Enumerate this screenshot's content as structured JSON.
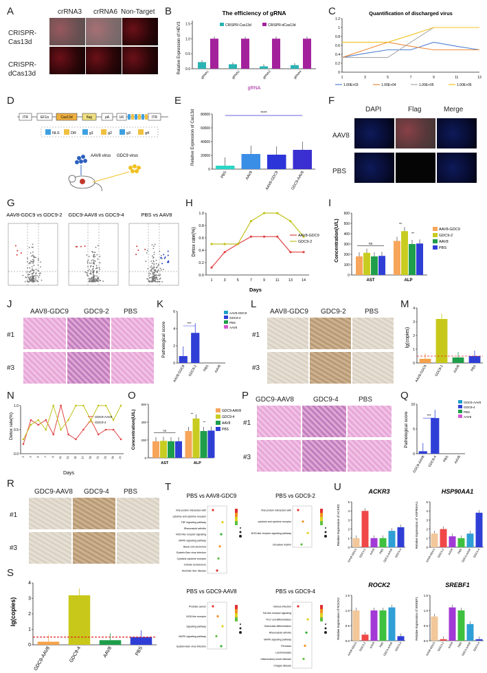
{
  "labels": [
    "A",
    "B",
    "C",
    "D",
    "E",
    "F",
    "G",
    "H",
    "I",
    "J",
    "K",
    "L",
    "M",
    "N",
    "O",
    "P",
    "Q",
    "R",
    "S",
    "T",
    "U"
  ],
  "panelA": {
    "cols": [
      "crRNA3",
      "crRNA6",
      "Non-Target"
    ],
    "rows": [
      "CRISPR-\nCas13d",
      "CRISPR-\ndCas13d"
    ]
  },
  "panelB": {
    "title": "The efficiency of gRNA",
    "xlabel": "gRNA",
    "ylabel": "Relative Expression of HEV3",
    "legend": [
      "CRISPR-Cas13d",
      "CRISPR-dCas13d"
    ],
    "colors": [
      "#2bb3b3",
      "#a3229c"
    ]
  },
  "panelC": {
    "title": "Quantification of discharged virus",
    "legend": [
      "1.00E+03",
      "1.00E+04",
      "1.00E+05",
      "1.00E+06"
    ],
    "colors": [
      "#4f7fd1",
      "#ee8b3a",
      "#a8a8a8",
      "#f2c21b"
    ]
  },
  "panelD": {
    "construct": [
      "ITR",
      "EF1α",
      "Cas13d",
      "flag",
      "pA",
      "U6",
      "ITR"
    ],
    "grna": [
      "NLS",
      "DR",
      "g1",
      "g2",
      "g3",
      "g4"
    ],
    "aav": "AAV8 virus",
    "gdc": "GDC9\nvirus"
  },
  "panelE": {
    "ylabel": "Relative Expression of Cas13d",
    "categories": [
      "PBS",
      "AAV8",
      "AAV8-GDC9",
      "GDC9-AAV8"
    ],
    "sig": "****"
  },
  "panelF": {
    "cols": [
      "DAPI",
      "Flag",
      "Merge"
    ],
    "rows": [
      "AAV8",
      "PBS"
    ]
  },
  "panelG": {
    "titles": [
      "AAV8-GDC9 vs GDC9-2",
      "GDC9-AAV8 vs GDC9-4",
      "PBS vs AAV8"
    ]
  },
  "panelH": {
    "ylabel": "Detox rate(%)",
    "xlabel": "Days",
    "legend": [
      "AAV8-GDC9",
      "GDC9-2"
    ],
    "colors": [
      "#e04040",
      "#bfc21a"
    ]
  },
  "panelI": {
    "ylabel": "Concentration(U/L)",
    "groups": [
      "AST",
      "ALP"
    ],
    "legend": [
      "AAV8-GDC9",
      "GDC9-2",
      "AAV8",
      "PBS"
    ],
    "colors": [
      "#f7a55a",
      "#c8cc20",
      "#1e9e4a",
      "#2f3fd6"
    ],
    "sig": [
      "ns",
      "**",
      "**"
    ]
  },
  "panelJ": {
    "cols": [
      "AAV8-GDC9",
      "GDC9-2",
      "PBS"
    ],
    "rows": [
      "#1",
      "#3"
    ]
  },
  "panelK": {
    "ylabel": "Pathological score",
    "categories": [
      "AAV8-GDC9",
      "GDC9-2",
      "PBS",
      "AAV8"
    ],
    "legend": [
      "AAV8-GDC9",
      "GDC9-2",
      "PBS",
      "AAV8"
    ],
    "colors": [
      "#1f9fc7",
      "#2f3fd6",
      "#1e9e4a",
      "#d45bd0"
    ],
    "sig": "***"
  },
  "panelL": {
    "cols": [
      "AAV8-GDC9",
      "GDC9-2",
      "PBS"
    ],
    "rows": [
      "#1",
      "#3"
    ]
  },
  "panelM": {
    "ylabel": "lg(copies)",
    "categories": [
      "AAV8-GDC9",
      "GDC9-2",
      "AAV8",
      "PBS"
    ]
  },
  "panelN": {
    "ylabel": "Detox rate(%)",
    "xlabel": "Days",
    "legend": [
      "GDC9-AAV8",
      "GDC9-4"
    ]
  },
  "panelO": {
    "ylabel": "Concentration(U/L)",
    "groups": [
      "AST",
      "ALP"
    ],
    "legend": [
      "GDC9-AAV8",
      "GDC9-4",
      "AAV8",
      "PBS"
    ],
    "sig": [
      "ns",
      "**",
      "**"
    ]
  },
  "panelP": {
    "cols": [
      "GDC9-AAV8",
      "GDC9-4",
      "PBS"
    ],
    "rows": [
      "#1",
      "#3"
    ]
  },
  "panelQ": {
    "ylabel": "Pathological score",
    "categories": [
      "GDC9-AAV8",
      "GDC9-4",
      "PBS",
      "AAV8"
    ],
    "legend": [
      "GDC9-AAV8",
      "GDC9-4",
      "PBS",
      "AAV8"
    ],
    "sig": "***"
  },
  "panelR": {
    "cols": [
      "GDC9-AAV8",
      "GDC9-4",
      "PBS"
    ],
    "rows": [
      "#1",
      "#3"
    ]
  },
  "panelS": {
    "ylabel": "lg(copies)",
    "categories": [
      "GDC9-AAV8",
      "GDC9-4",
      "AAV8",
      "PBS"
    ]
  },
  "panelT": {
    "titles": [
      "PBS vs AAV8-GDC9",
      "PBS vs GDC9-2",
      "PBS vs GDC9-AAV8",
      "PBS vs GDC9-4"
    ],
    "terms1": [
      "Viral protein interaction with",
      "cytokine and cytokine receptor",
      "TNF signaling pathway",
      "Rheumatoid arthritis",
      "NOD-like receptor signaling",
      "MAPK signaling pathway",
      "Basal cell carcinoma",
      "Epstein-Barr virus infection",
      "Cytokine-cytokine receptor",
      "Cellular senescence",
      "Alcoholic liver disease"
    ],
    "terms2": [
      "Viral protein interaction with",
      "cytokine and cytokine receptor",
      "NOD-like receptor signaling pathway",
      "Circadian rhythm"
    ],
    "terms3": [
      "Prostate cancer",
      "NOD-like receptor",
      "signaling pathway",
      "MAPK signaling pathway",
      "Epstein-Barr virus infection"
    ],
    "terms4": [
      "Various infection",
      "Toll-like receptor signaling",
      "Th17 cell differentiation",
      "Osteoclast differentiation",
      "Rheumatoid arthritis",
      "MAPK signaling pathway",
      "Pertussis",
      "Leishmaniasis",
      "Inflammatory bowel disease",
      "Chagas disease"
    ]
  },
  "panelU": {
    "genes": [
      "ACKR3",
      "HSP90AA1",
      "ROCK2",
      "SREBF1"
    ],
    "ylabels": [
      "Relative Expression of ACKR3",
      "Relative Expression of HSP90AA1",
      "Relative Expression of ROCK2",
      "Relative Expression of SREBF1"
    ],
    "categories": [
      "AAV8-GDC9",
      "GDC9-2",
      "AAV8",
      "PBS",
      "GDC9-AAV8",
      "GDC9-4"
    ],
    "colors": [
      "#f2c79a",
      "#f04848",
      "#a23ad6",
      "#3fc13f",
      "#2f9fd6",
      "#2f3fd6"
    ]
  },
  "chart_data": [
    {
      "panel": "B",
      "type": "bar",
      "categories": [
        "gRNA1",
        "gRNA2",
        "gRNA3",
        "gRNA4"
      ],
      "series": [
        {
          "name": "CRISPR-Cas13d",
          "values": [
            0.22,
            0.15,
            0.08,
            0.12
          ]
        },
        {
          "name": "CRISPR-dCas13d",
          "values": [
            1.0,
            1.0,
            1.0,
            1.0
          ]
        }
      ],
      "ylim": [
        0,
        1.6
      ],
      "yticks": [
        "0.0",
        "0.5",
        "1.0",
        "1.5"
      ]
    },
    {
      "panel": "C",
      "type": "line",
      "x": [
        1,
        3,
        5,
        7,
        9,
        11,
        13
      ],
      "series": [
        {
          "name": "1.00E+03",
          "values": [
            0.33,
            0.42,
            0.5,
            0.5,
            0.67,
            0.58,
            0.5
          ]
        },
        {
          "name": "1.00E+04",
          "values": [
            0.33,
            0.5,
            0.67,
            0.58,
            0.5,
            0.5,
            0.5
          ]
        },
        {
          "name": "1.00E+05",
          "values": [
            0.33,
            0.33,
            0.33,
            0.67,
            1.0,
            1.0,
            1.0
          ]
        },
        {
          "name": "1.00E+06",
          "values": [
            0.67,
            0.67,
            0.67,
            0.83,
            1.0,
            1.0,
            1.0
          ]
        }
      ],
      "ylim": [
        0,
        1.2
      ],
      "yticks": [
        "0",
        "0.2",
        "0.4",
        "0.6",
        "0.8",
        "1",
        "1.2"
      ],
      "xticks": [
        "1",
        "3",
        "5",
        "7",
        "9",
        "11",
        "13"
      ]
    },
    {
      "panel": "E",
      "type": "bar",
      "categories": [
        "PBS",
        "AAV8",
        "AAV8-GDC9",
        "GDC9-AAV8"
      ],
      "values": [
        5000,
        22000,
        21000,
        28000
      ],
      "ylim": [
        0,
        80000
      ],
      "yticks": [
        "0",
        "20000",
        "40000",
        "60000",
        "80000"
      ],
      "colors": [
        "#2ad6c7",
        "#3a8ee6",
        "#2b35d8",
        "#3a2fd0"
      ]
    },
    {
      "panel": "H",
      "type": "line",
      "x": [
        1,
        3,
        5,
        7,
        9,
        11,
        13,
        14
      ],
      "series": [
        {
          "name": "AAV8-GDC9",
          "values": [
            0.12,
            0.37,
            0.5,
            0.62,
            0.62,
            0.62,
            0.37,
            0.37
          ]
        },
        {
          "name": "GDC9-2",
          "values": [
            0.5,
            0.5,
            0.5,
            0.87,
            1.0,
            1.0,
            0.87,
            0.62
          ]
        }
      ],
      "ylim": [
        0,
        1.0
      ],
      "yticks": [
        "0.0",
        "0.2",
        "0.4",
        "0.6",
        "0.8",
        "1.0"
      ],
      "xticks": [
        "1",
        "3",
        "5",
        "7",
        "9",
        "11",
        "13",
        "14"
      ]
    },
    {
      "panel": "I",
      "type": "bar",
      "categories": [
        "AST",
        "ALP"
      ],
      "series": [
        {
          "name": "AAV8-GDC9",
          "values": [
            180,
            330
          ]
        },
        {
          "name": "GDC9-2",
          "values": [
            215,
            425
          ]
        },
        {
          "name": "AAV8",
          "values": [
            180,
            300
          ]
        },
        {
          "name": "PBS",
          "values": [
            185,
            305
          ]
        }
      ],
      "ylim": [
        0,
        600
      ],
      "yticks": [
        "0",
        "100",
        "200",
        "300",
        "400",
        "500",
        "600"
      ]
    },
    {
      "panel": "K",
      "type": "bar",
      "categories": [
        "AAV8-GDC9",
        "GDC9-2",
        "PBS",
        "AAV8"
      ],
      "values": [
        0.8,
        3.5,
        0,
        0
      ],
      "ylim": [
        0,
        6
      ],
      "yticks": [
        "0",
        "2",
        "4",
        "6"
      ]
    },
    {
      "panel": "M",
      "type": "bar",
      "categories": [
        "AAV8-GDC9",
        "GDC9-2",
        "AAV8",
        "PBS"
      ],
      "values": [
        0.3,
        3.2,
        0.4,
        0.5
      ],
      "ylim": [
        0,
        4
      ],
      "yticks": [
        "0",
        "1",
        "2",
        "3",
        "4"
      ],
      "threshold": 0.5,
      "colors": [
        "#f6a24a",
        "#c8c81a",
        "#1e9e4a",
        "#2f3fd6"
      ]
    },
    {
      "panel": "N",
      "type": "line",
      "x": [
        1,
        3,
        5,
        7,
        9,
        11,
        13,
        15,
        17,
        19,
        21,
        23,
        25,
        27
      ],
      "series": [
        {
          "name": "GDC9-AAV8",
          "values": [
            0.2,
            0.7,
            0.6,
            0.7,
            0.4,
            1.0,
            0.4,
            0.3,
            0.5,
            0.7,
            0.4,
            0.5,
            0.5,
            0.3
          ]
        },
        {
          "name": "GDC9-4",
          "values": [
            0.3,
            0.6,
            0.7,
            0.5,
            1.0,
            0.5,
            0.7,
            1.0,
            1.0,
            0.7,
            1.0,
            1.0,
            0.7,
            1.0
          ]
        }
      ],
      "ylim": [
        0,
        1.0
      ],
      "yticks": [
        "0.0",
        "0.5",
        "1.0"
      ]
    },
    {
      "panel": "O",
      "type": "bar",
      "categories": [
        "AST",
        "ALP"
      ],
      "series": [
        {
          "name": "GDC9-AAV8",
          "values": [
            185,
            300
          ]
        },
        {
          "name": "GDC9-4",
          "values": [
            190,
            440
          ]
        },
        {
          "name": "AAV8",
          "values": [
            185,
            300
          ]
        },
        {
          "name": "PBS",
          "values": [
            185,
            305
          ]
        }
      ],
      "ylim": [
        0,
        600
      ],
      "yticks": [
        "0",
        "200",
        "400",
        "600"
      ]
    },
    {
      "panel": "Q",
      "type": "bar",
      "categories": [
        "GDC9-AAV8",
        "GDC9-4",
        "PBS",
        "AAV8"
      ],
      "values": [
        0.5,
        7.2,
        0,
        0
      ],
      "ylim": [
        0,
        10
      ],
      "yticks": [
        "0",
        "5",
        "10"
      ]
    },
    {
      "panel": "S",
      "type": "bar",
      "categories": [
        "GDC9-AAV8",
        "GDC9-4",
        "AAV8",
        "PBS"
      ],
      "values": [
        0.2,
        3.2,
        0.3,
        0.5
      ],
      "ylim": [
        0,
        4
      ],
      "yticks": [
        "0",
        "1",
        "2",
        "3",
        "4"
      ],
      "threshold": 0.5
    },
    {
      "panel": "U1",
      "type": "bar",
      "gene": "ACKR3",
      "categories": [
        "AAV8-GDC9",
        "GDC9-2",
        "AAV8",
        "PBS",
        "GDC9-AAV8",
        "GDC9-4"
      ],
      "values": [
        1.0,
        4.0,
        1.0,
        1.0,
        1.8,
        2.2
      ],
      "ylim": [
        0,
        5
      ],
      "yticks": [
        "0",
        "1",
        "2",
        "3",
        "4",
        "5"
      ]
    },
    {
      "panel": "U2",
      "type": "bar",
      "gene": "HSP90AA1",
      "categories": [
        "AAV8-GDC9",
        "GDC9-2",
        "AAV8",
        "PBS",
        "GDC9-AAV8",
        "GDC9-4"
      ],
      "values": [
        1.5,
        2.0,
        1.2,
        1.0,
        1.5,
        3.8
      ],
      "ylim": [
        0,
        5
      ],
      "yticks": [
        "0",
        "1",
        "2",
        "3",
        "4",
        "5"
      ]
    },
    {
      "panel": "U3",
      "type": "bar",
      "gene": "ROCK2",
      "categories": [
        "AAV8-GDC9",
        "GDC9-2",
        "AAV8",
        "PBS",
        "GDC9-AAV8",
        "GDC9-4"
      ],
      "values": [
        1.0,
        0.2,
        1.0,
        1.0,
        1.1,
        0.15
      ],
      "ylim": [
        0,
        1.5
      ],
      "yticks": [
        "0.0",
        "0.5",
        "1.0",
        "1.5"
      ]
    },
    {
      "panel": "U4",
      "type": "bar",
      "gene": "SREBF1",
      "categories": [
        "AAV8-GDC9",
        "GDC9-2",
        "AAV8",
        "PBS",
        "GDC9-AAV8",
        "GDC9-4"
      ],
      "values": [
        0.8,
        0.05,
        1.1,
        1.0,
        0.55,
        0.05
      ],
      "ylim": [
        0,
        1.5
      ],
      "yticks": [
        "0.0",
        "0.5",
        "1.0",
        "1.5"
      ]
    }
  ]
}
